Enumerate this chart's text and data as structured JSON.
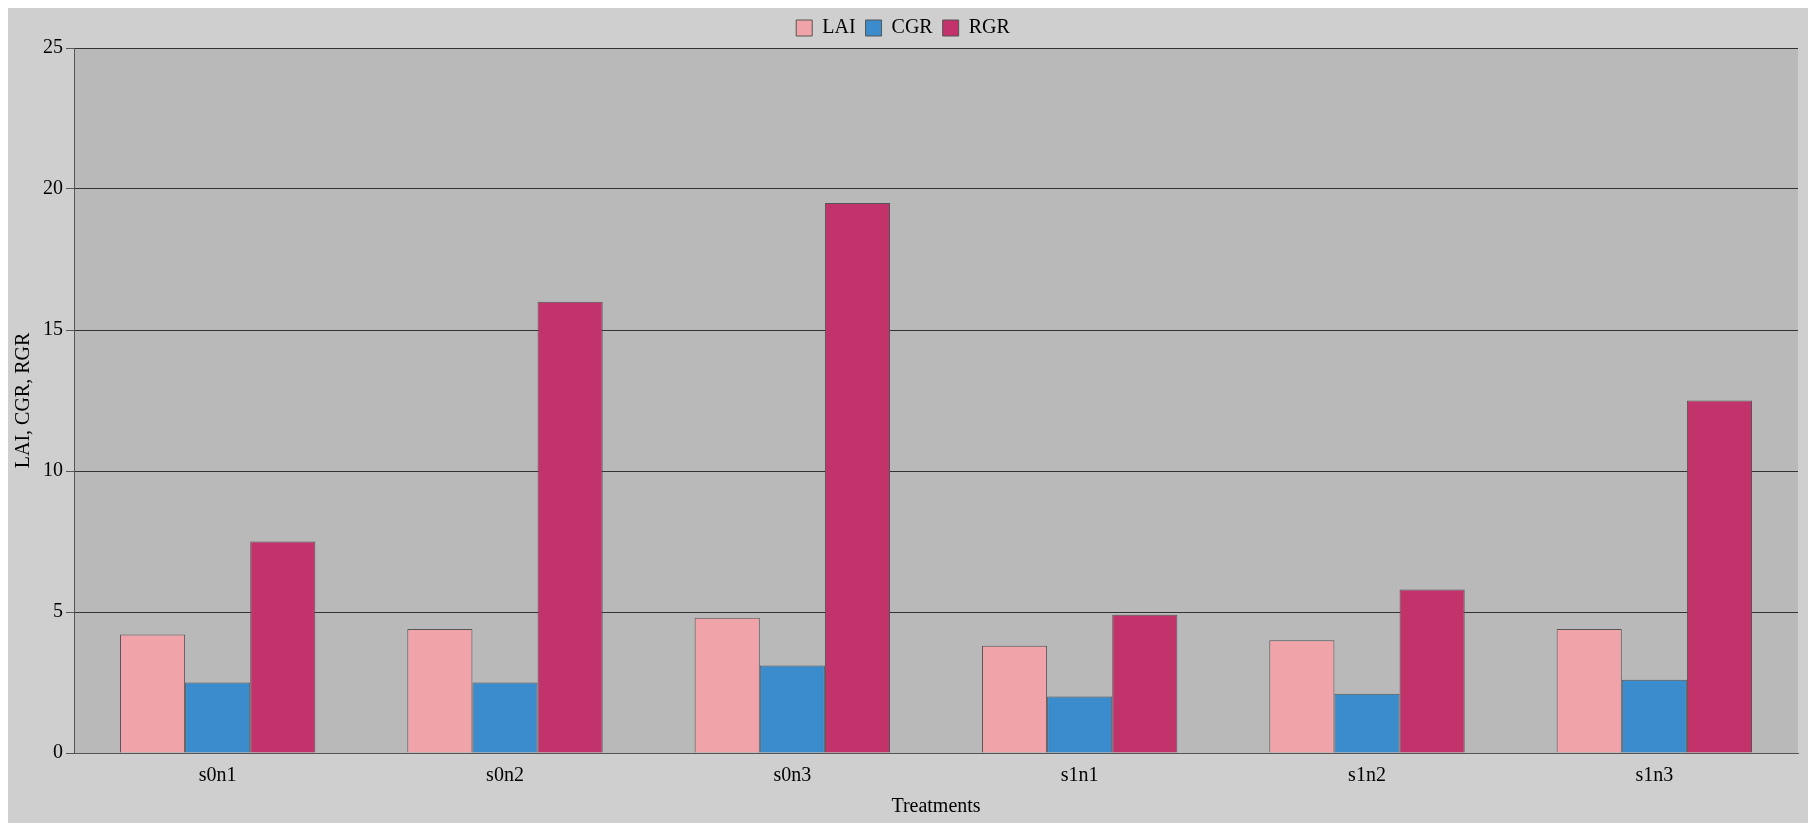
{
  "chart_data": {
    "type": "bar",
    "xlabel": "Treatments",
    "ylabel": "LAI, CGR, RGR",
    "categories": [
      "s0n1",
      "s0n2",
      "s0n3",
      "s1n1",
      "s1n2",
      "s1n3"
    ],
    "series": [
      {
        "name": "LAI",
        "color": "#f0a4aa",
        "values": [
          4.2,
          4.4,
          4.8,
          3.8,
          4.0,
          4.4
        ]
      },
      {
        "name": "CGR",
        "color": "#3a8ccc",
        "values": [
          2.5,
          2.5,
          3.1,
          2.0,
          2.1,
          2.6
        ]
      },
      {
        "name": "RGR",
        "color": "#c2336c",
        "values": [
          7.5,
          16.0,
          19.5,
          4.9,
          5.8,
          12.5
        ]
      }
    ],
    "ylim": [
      0,
      25
    ],
    "yticks": [
      0,
      5,
      10,
      15,
      20,
      25
    ],
    "grid": "y",
    "legend": "top"
  }
}
